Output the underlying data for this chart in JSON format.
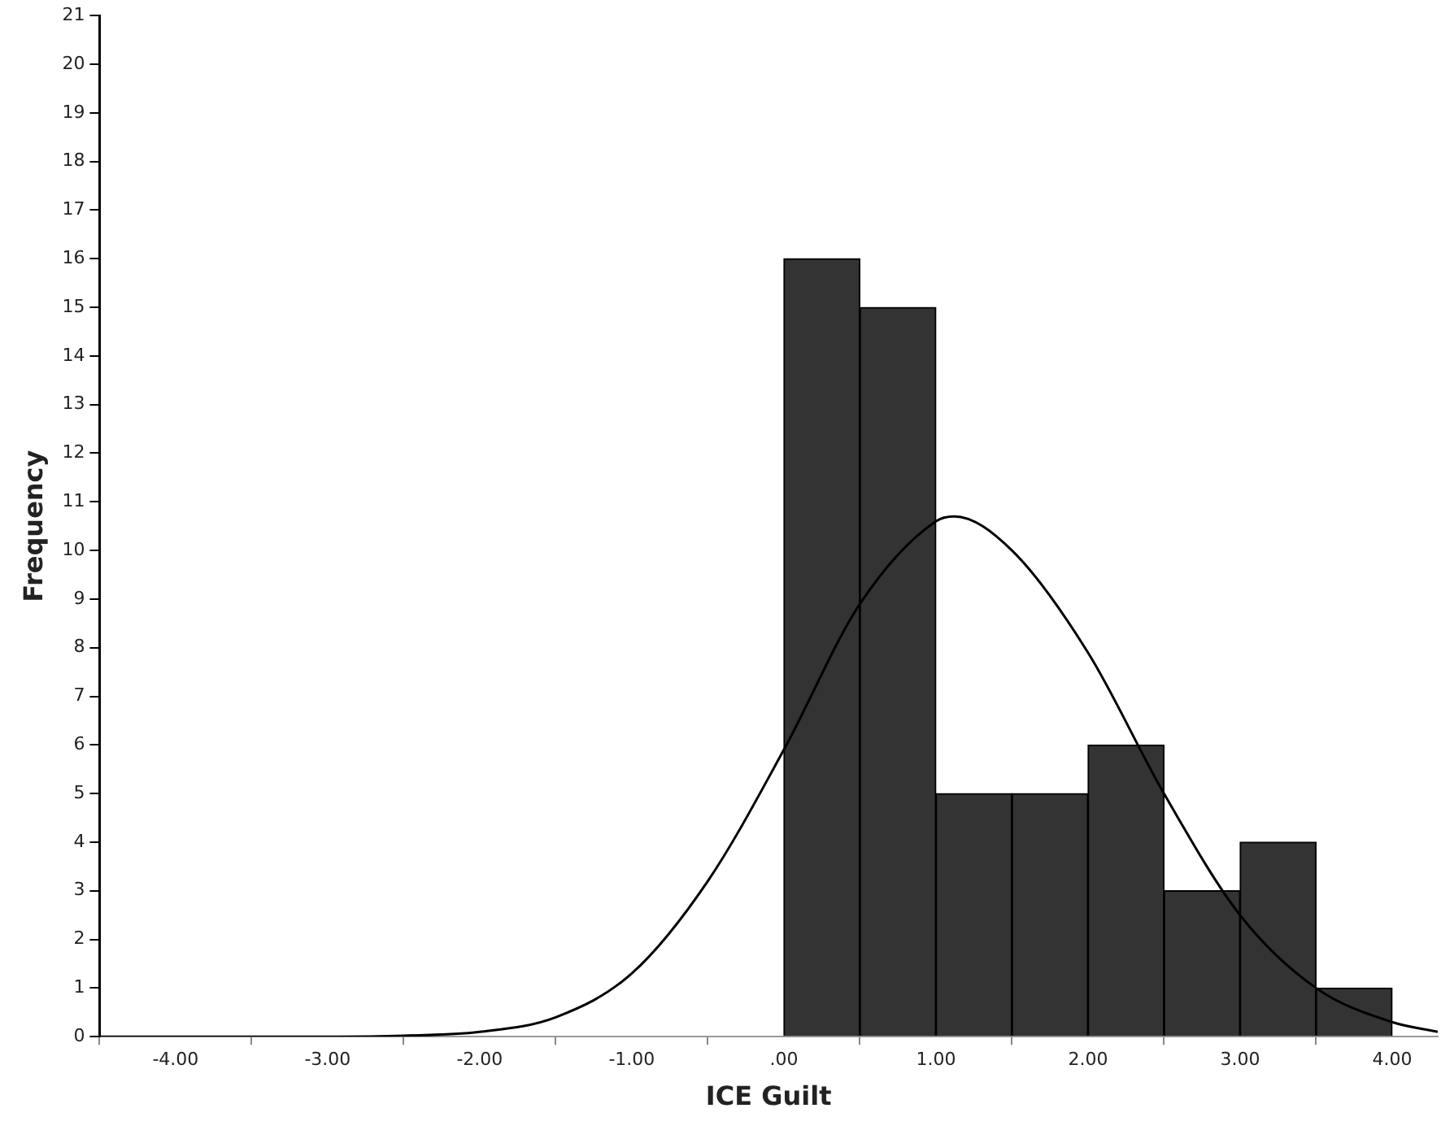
{
  "chart_data": {
    "type": "histogram",
    "xlabel": "ICE Guilt",
    "ylabel": "Frequency",
    "bins": [
      0,
      0.5,
      1,
      1.5,
      2,
      2.5,
      3,
      3.5,
      4
    ],
    "values": [
      16,
      15,
      5,
      5,
      6,
      3,
      4,
      1
    ],
    "color": "#333333",
    "series": [
      {
        "type": "line",
        "color": "#000000",
        "marker": "none",
        "x": [
          -4.5,
          -3,
          -2.5,
          -2,
          -1.5,
          -1,
          -0.5,
          0,
          0.5,
          1,
          1.12,
          1.5,
          2,
          2.5,
          3,
          3.5,
          4,
          4.3
        ],
        "values": [
          0,
          0,
          0.02,
          0.1,
          0.4,
          1.3,
          3.2,
          5.9,
          8.9,
          10.6,
          10.7,
          10,
          7.9,
          5,
          2.5,
          1,
          0.3,
          0.1
        ]
      }
    ],
    "xlim": [
      -4.5,
      4.3
    ],
    "xticks": [
      {
        "value": -4,
        "label": "-4.00"
      },
      {
        "value": -3,
        "label": "-3.00"
      },
      {
        "value": -2,
        "label": "-2.00"
      },
      {
        "value": -1,
        "label": "-1.00"
      },
      {
        "value": 0,
        "label": ".00"
      },
      {
        "value": 1,
        "label": "1.00"
      },
      {
        "value": 2,
        "label": "2.00"
      },
      {
        "value": 3,
        "label": "3.00"
      },
      {
        "value": 4,
        "label": "4.00"
      }
    ],
    "ylim": [
      0,
      21
    ],
    "yticks": [
      0,
      1,
      2,
      3,
      4,
      5,
      6,
      7,
      8,
      9,
      10,
      11,
      12,
      13,
      14,
      15,
      16,
      17,
      18,
      19,
      20,
      21
    ],
    "grid": false,
    "legend": false
  }
}
